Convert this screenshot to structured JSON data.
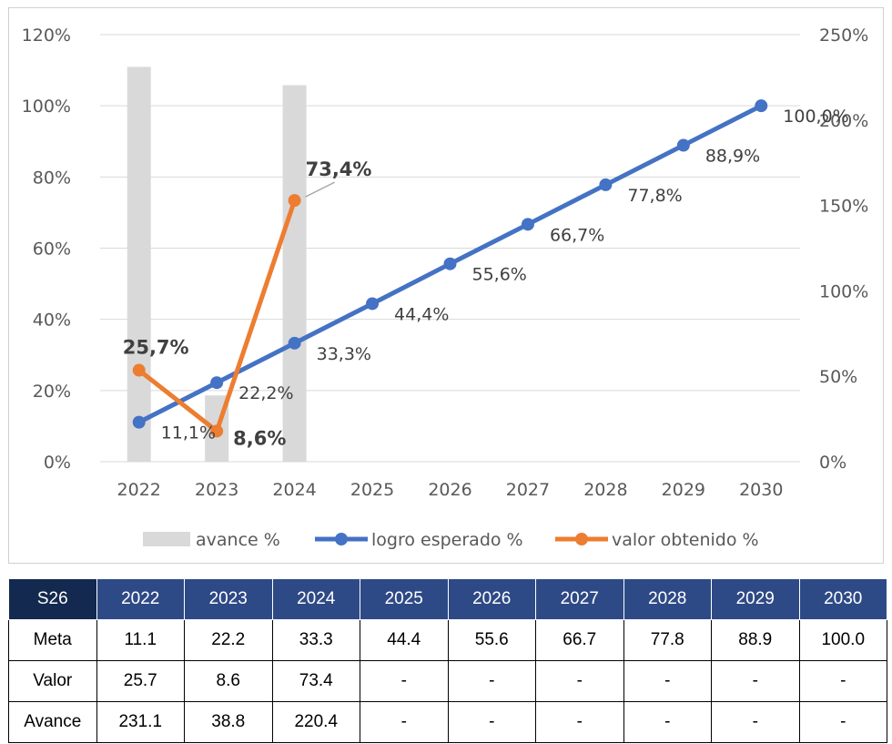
{
  "chart_data": {
    "type": "bar+line",
    "categories": [
      "2022",
      "2023",
      "2024",
      "2025",
      "2026",
      "2027",
      "2028",
      "2029",
      "2030"
    ],
    "y_left": {
      "ticks": [
        "0%",
        "20%",
        "40%",
        "60%",
        "80%",
        "100%",
        "120%"
      ],
      "ylim": [
        0,
        120
      ]
    },
    "y_right": {
      "ticks": [
        "0%",
        "50%",
        "100%",
        "150%",
        "200%",
        "250%"
      ],
      "ylim": [
        0,
        250
      ]
    },
    "series": [
      {
        "name": "avance %",
        "type": "bar",
        "axis": "right",
        "color": "#d9d9d9",
        "values": [
          231.1,
          38.8,
          220.4,
          null,
          null,
          null,
          null,
          null,
          null
        ]
      },
      {
        "name": "logro esperado %",
        "type": "line",
        "axis": "left",
        "color": "#4472c4",
        "values": [
          11.1,
          22.2,
          33.3,
          44.4,
          55.6,
          66.7,
          77.8,
          88.9,
          100.0
        ],
        "labels": [
          "11,1%",
          "22,2%",
          "33,3%",
          "44,4%",
          "55,6%",
          "66,7%",
          "77,8%",
          "88,9%",
          "100,0%"
        ]
      },
      {
        "name": "valor obtenido %",
        "type": "line",
        "axis": "left",
        "color": "#ed7d31",
        "values": [
          25.7,
          8.6,
          73.4,
          null,
          null,
          null,
          null,
          null,
          null
        ],
        "labels": [
          "25,7%",
          "8,6%",
          "73,4%"
        ]
      }
    ],
    "grid": true,
    "legend": "bottom"
  },
  "table": {
    "header": [
      "S26",
      "2022",
      "2023",
      "2024",
      "2025",
      "2026",
      "2027",
      "2028",
      "2029",
      "2030"
    ],
    "rows": [
      [
        "Meta",
        "11.1",
        "22.2",
        "33.3",
        "44.4",
        "55.6",
        "66.7",
        "77.8",
        "88.9",
        "100.0"
      ],
      [
        "Valor",
        "25.7",
        "8.6",
        "73.4",
        "-",
        "-",
        "-",
        "-",
        "-",
        "-"
      ],
      [
        "Avance",
        "231.1",
        "38.8",
        "220.4",
        "-",
        "-",
        "-",
        "-",
        "-",
        "-"
      ]
    ]
  }
}
